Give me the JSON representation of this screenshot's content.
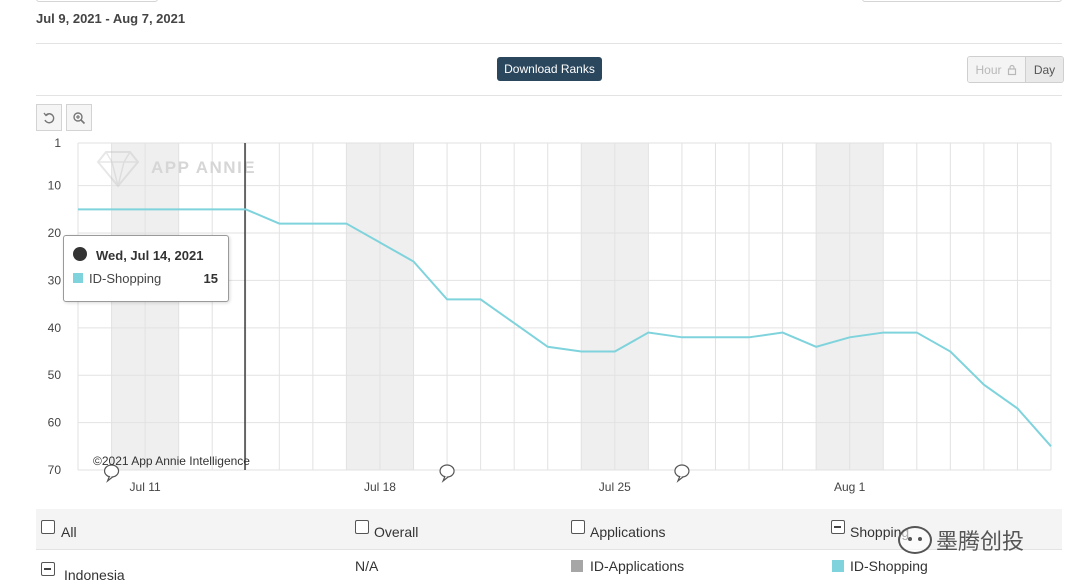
{
  "header": {
    "date_range": "Jul 9, 2021 - Aug 7, 2021"
  },
  "toolbar": {
    "download_label": "Download Ranks",
    "hour_label": "Hour",
    "day_label": "Day",
    "reset_icon": "undo-icon",
    "zoom_icon": "zoom-in-icon"
  },
  "chart": {
    "watermark": "APP ANNIE",
    "copyright": "©2021 App Annie Intelligence",
    "y_ticks": [
      "1",
      "10",
      "20",
      "30",
      "40",
      "50",
      "60",
      "70"
    ],
    "x_ticks": [
      "Jul 11",
      "Jul 18",
      "Jul 25",
      "Aug 1"
    ]
  },
  "tooltip": {
    "date": "Wed, Jul 14, 2021",
    "series": "ID-Shopping",
    "value": "15"
  },
  "chart_data": {
    "type": "line",
    "x": [
      "2021-07-09",
      "2021-07-10",
      "2021-07-11",
      "2021-07-12",
      "2021-07-13",
      "2021-07-14",
      "2021-07-15",
      "2021-07-16",
      "2021-07-17",
      "2021-07-18",
      "2021-07-19",
      "2021-07-20",
      "2021-07-21",
      "2021-07-22",
      "2021-07-23",
      "2021-07-24",
      "2021-07-25",
      "2021-07-26",
      "2021-07-27",
      "2021-07-28",
      "2021-07-29",
      "2021-07-30",
      "2021-07-31",
      "2021-08-01",
      "2021-08-02",
      "2021-08-03",
      "2021-08-04",
      "2021-08-05",
      "2021-08-06",
      "2021-08-07"
    ],
    "series": [
      {
        "name": "ID-Shopping",
        "color": "#7fd3dc",
        "values": [
          15,
          15,
          15,
          15,
          15,
          15,
          18,
          18,
          18,
          22,
          26,
          34,
          34,
          39,
          44,
          45,
          45,
          41,
          42,
          42,
          42,
          41,
          44,
          42,
          41,
          41,
          45,
          52,
          57,
          65
        ]
      }
    ],
    "y_inverted": true,
    "ylim": [
      1,
      70
    ],
    "grid": true,
    "weekend_shading": true,
    "hover_date": "2021-07-14"
  },
  "legend": {
    "headers": [
      "All",
      "Overall",
      "Applications",
      "Shopping"
    ],
    "row": {
      "country": "Indonesia",
      "overall": "N/A",
      "applications": "ID-Applications",
      "shopping": "ID-Shopping"
    },
    "colors": {
      "applications": "#a6a6a6",
      "shopping": "#7fd3dc"
    }
  },
  "watermark_overlay": {
    "text": "墨腾创投",
    "icon": "wechat-icon"
  }
}
